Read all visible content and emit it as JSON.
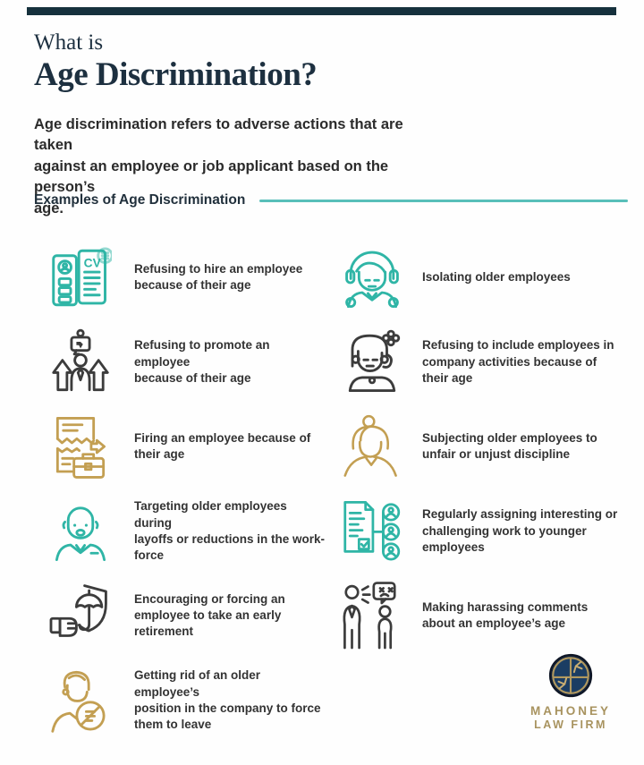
{
  "header": {
    "title_line1": "What is",
    "title_line2": "Age Discrimination?",
    "intro": "Age discrimination refers to adverse actions that are taken\nagainst an employee or job applicant based on the person’s\nage."
  },
  "section": {
    "label": "Examples of Age Discrimination"
  },
  "examples": {
    "left": [
      {
        "icon": "cv-resume-icon",
        "tone": "teal",
        "text": "Refusing to hire an employee\nbecause of their age"
      },
      {
        "icon": "promotion-denied-icon",
        "tone": "dark",
        "text": "Refusing to promote an employee\nbecause of their age"
      },
      {
        "icon": "termination-briefcase-icon",
        "tone": "gold",
        "text": "Firing an employee because of\ntheir age"
      },
      {
        "icon": "older-employee-layoff-icon",
        "tone": "teal",
        "text": "Targeting older employees during\nlayoffs or reductions in the work-\nforce"
      },
      {
        "icon": "umbrella-shield-retirement-icon",
        "tone": "dark",
        "text": "Encouraging or forcing an\nemployee to take an early\nretirement"
      },
      {
        "icon": "eliminated-position-icon",
        "tone": "gold",
        "text": "Getting rid of an older employee’s\nposition in the company to force\nthem to leave"
      }
    ],
    "right": [
      {
        "icon": "isolated-employee-icon",
        "tone": "teal",
        "text": "Isolating older employees"
      },
      {
        "icon": "excluded-employee-icon",
        "tone": "dark",
        "text": "Refusing to include employees in\ncompany activities because of\ntheir age"
      },
      {
        "icon": "older-woman-discipline-icon",
        "tone": "gold",
        "text": "Subjecting older employees to\nunfair or unjust discipline"
      },
      {
        "icon": "task-assignment-icon",
        "tone": "teal",
        "text": "Regularly assigning interesting or\nchallenging work to younger\nemployees"
      },
      {
        "icon": "harassing-comments-icon",
        "tone": "dark",
        "text": "Making harassing comments\nabout an employee’s age"
      }
    ]
  },
  "footer": {
    "brand_name_line1": "MAHONEY",
    "brand_name_line2": "LAW FIRM"
  },
  "colors": {
    "top_bar": "#16313d",
    "title_navy": "#1d3040",
    "divider_teal": "#58bfb9",
    "icon_teal": "#2fb5a6",
    "icon_gold": "#c39f52",
    "icon_dark": "#3c3c3c",
    "logo_navy": "#1b3d63",
    "logo_gold": "#b0985f"
  }
}
